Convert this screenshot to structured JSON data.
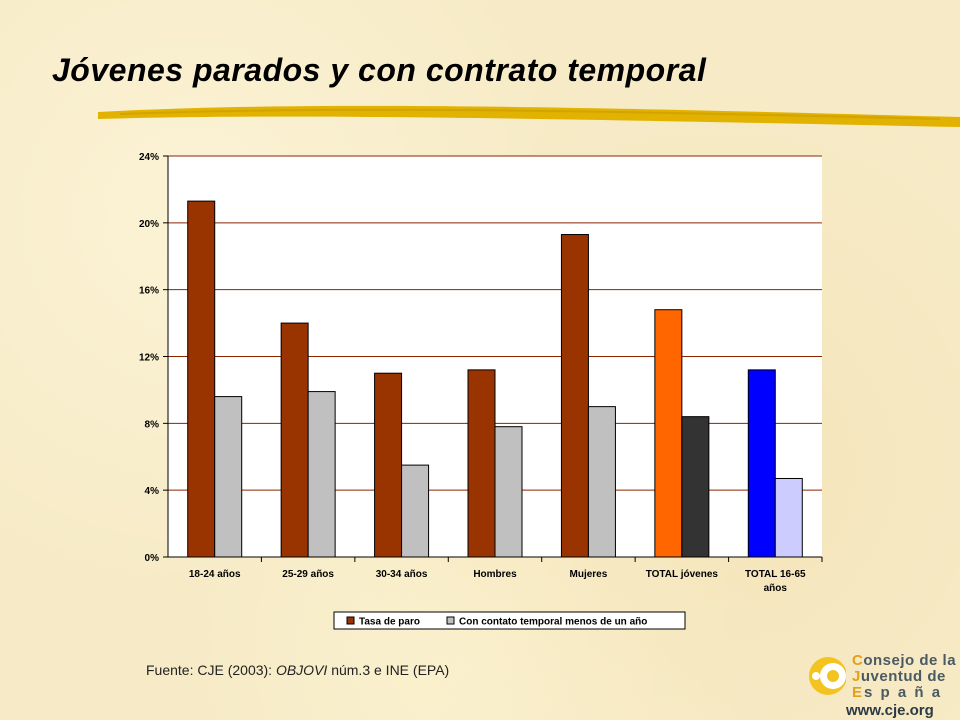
{
  "slide": {
    "title": "Jóvenes parados y con contrato temporal",
    "source_prefix": "Fuente: CJE (2003): ",
    "source_italic": "OBJOVI",
    "source_suffix": " núm.3 e INE (EPA)"
  },
  "logo": {
    "line1_cap": "C",
    "line1_rest": "onsejo de la",
    "line2_cap": "J",
    "line2_rest": "uventud de",
    "line3_cap": "E",
    "line3_rest": "s p a ñ a",
    "url": "www.cje.org",
    "colors": {
      "accent": "#e2a11a",
      "text": "#4a5a63"
    }
  },
  "chart_data": {
    "type": "bar",
    "categories": [
      "18-24 años",
      "25-29 años",
      "30-34 años",
      "Hombres",
      "Mujeres",
      "TOTAL jóvenes",
      "TOTAL 16-65 años"
    ],
    "series": [
      {
        "name": "Tasa de paro",
        "values": [
          21.3,
          14.0,
          11.0,
          11.2,
          19.3,
          14.8,
          11.2
        ]
      },
      {
        "name": "Con contato temporal menos de un año",
        "values": [
          9.6,
          9.9,
          5.5,
          7.8,
          9.0,
          8.4,
          4.7
        ]
      }
    ],
    "ylim": [
      0,
      24
    ],
    "yticks": [
      0,
      4,
      8,
      12,
      16,
      20,
      24
    ],
    "ytick_labels": [
      "0%",
      "4%",
      "8%",
      "12%",
      "16%",
      "20%",
      "24%"
    ],
    "grid": true,
    "legend": "bottom",
    "colors": {
      "series": [
        "#993300",
        "#c0c0c0"
      ],
      "point_overrides": {
        "5": [
          "#ff6600",
          "#333333"
        ],
        "6": [
          "#0000ff",
          "#ccccff"
        ]
      },
      "plot_background": "#ffffff",
      "gridline": "#8b2500"
    }
  }
}
